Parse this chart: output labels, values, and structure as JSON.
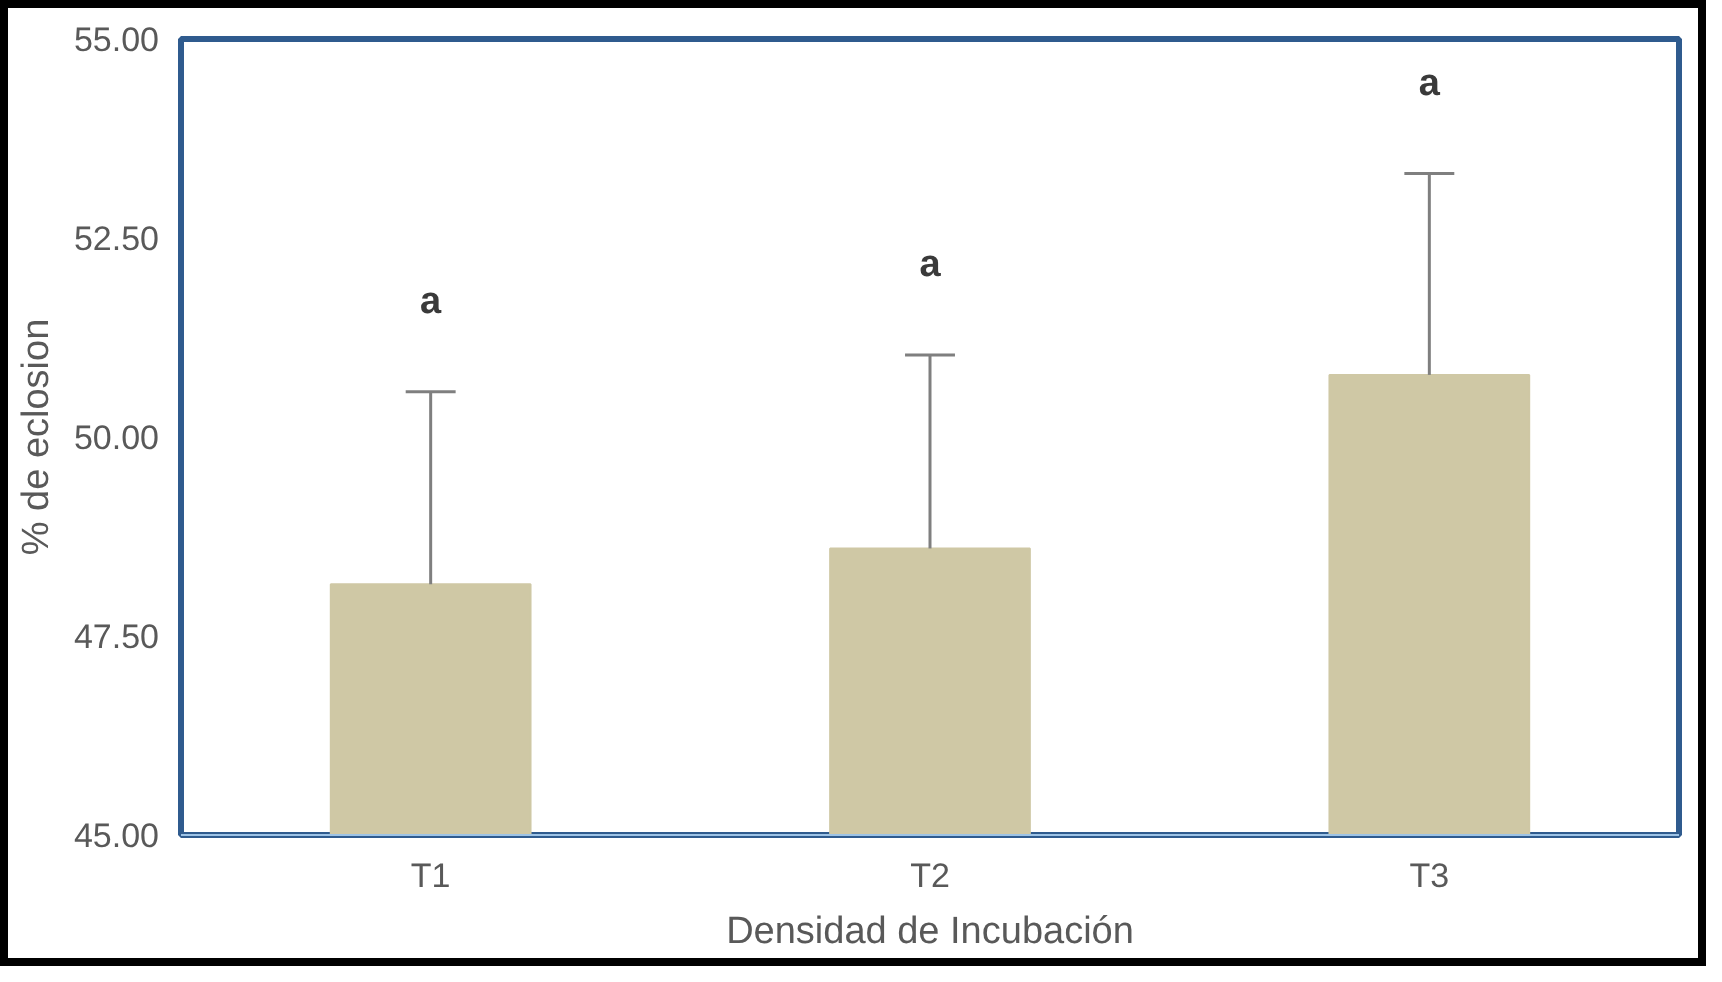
{
  "chart_data": {
    "type": "bar",
    "xlabel": "Densidad de Incubación",
    "ylabel": "% de eclosion",
    "categories": [
      "T1",
      "T2",
      "T3"
    ],
    "values": [
      48.15,
      48.6,
      50.78
    ],
    "errors": [
      [
        48.15,
        50.57
      ],
      [
        48.6,
        51.03
      ],
      [
        50.78,
        53.31
      ]
    ],
    "color": "#cfc8a5",
    "ylim": [
      45,
      55
    ],
    "yticks": [
      {
        "value": 45,
        "label": "45.00"
      },
      {
        "value": 47.5,
        "label": "47.50"
      },
      {
        "value": 50,
        "label": "50.00"
      },
      {
        "value": 52.5,
        "label": "52.50"
      },
      {
        "value": 55,
        "label": "55.00"
      }
    ],
    "annotations": [
      "a",
      "a",
      "a"
    ],
    "grid": false
  }
}
